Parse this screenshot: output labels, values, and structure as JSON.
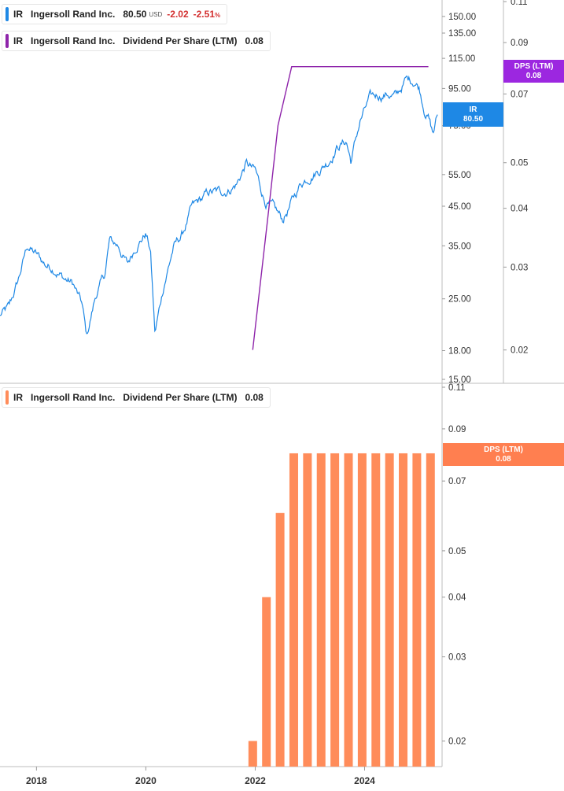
{
  "colors": {
    "price": "#1e88e5",
    "dps_line": "#8e24aa",
    "dps_bar": "#ff8c5a",
    "tag_price": "#1e88e5",
    "tag_dps_top": "#9c27e0",
    "tag_dps_bottom": "#ff7f50"
  },
  "legend_price": {
    "ticker": "IR",
    "name": "Ingersoll Rand Inc.",
    "price": "80.50",
    "unit": "USD",
    "change": "-2.02",
    "pct_value": "-2.51",
    "pct_sign": "%"
  },
  "legend_dps_top": {
    "ticker": "IR",
    "name": "Ingersoll Rand Inc.",
    "metric": "Dividend Per Share (LTM)",
    "value": "0.08"
  },
  "legend_dps_bottom": {
    "ticker": "IR",
    "name": "Ingersoll Rand Inc.",
    "metric": "Dividend Per Share (LTM)",
    "value": "0.08"
  },
  "tags": {
    "price": {
      "label": "IR",
      "value": "80.50"
    },
    "dps_top": {
      "label": "DPS (LTM)",
      "value": "0.08"
    },
    "dps_bottom": {
      "label": "DPS (LTM)",
      "value": "0.08"
    }
  },
  "chart_data": [
    {
      "type": "line",
      "series": [
        {
          "name": "IR",
          "scale": "log",
          "points": [
            [
              "2017-05",
              22.5
            ],
            [
              "2017-07",
              23.5
            ],
            [
              "2017-09",
              28.0
            ],
            [
              "2017-11",
              35.0
            ],
            [
              "2018-01",
              33.0
            ],
            [
              "2018-03",
              31.0
            ],
            [
              "2018-05",
              30.5
            ],
            [
              "2018-07",
              28.5
            ],
            [
              "2018-09",
              27.5
            ],
            [
              "2018-11",
              24.0
            ],
            [
              "2018-12",
              19.5
            ],
            [
              "2019-02",
              25.5
            ],
            [
              "2019-04",
              29.0
            ],
            [
              "2019-05",
              36.0
            ],
            [
              "2019-07",
              35.0
            ],
            [
              "2019-09",
              31.0
            ],
            [
              "2019-11",
              35.5
            ],
            [
              "2020-01",
              38.0
            ],
            [
              "2020-02",
              34.0
            ],
            [
              "2020-03",
              20.0
            ],
            [
              "2020-05",
              27.5
            ],
            [
              "2020-07",
              34.5
            ],
            [
              "2020-09",
              37.5
            ],
            [
              "2020-11",
              44.0
            ],
            [
              "2021-01",
              46.5
            ],
            [
              "2021-03",
              49.0
            ],
            [
              "2021-05",
              49.0
            ],
            [
              "2021-07",
              50.0
            ],
            [
              "2021-09",
              52.0
            ],
            [
              "2021-11",
              59.0
            ],
            [
              "2022-01",
              56.0
            ],
            [
              "2022-03",
              47.0
            ],
            [
              "2022-05",
              44.0
            ],
            [
              "2022-07",
              41.0
            ],
            [
              "2022-09",
              46.0
            ],
            [
              "2022-11",
              52.0
            ],
            [
              "2023-01",
              55.0
            ],
            [
              "2023-03",
              57.0
            ],
            [
              "2023-05",
              60.0
            ],
            [
              "2023-07",
              66.0
            ],
            [
              "2023-09",
              68.0
            ],
            [
              "2023-10",
              60.0
            ],
            [
              "2023-12",
              77.0
            ],
            [
              "2024-02",
              88.0
            ],
            [
              "2024-04",
              91.0
            ],
            [
              "2024-06",
              92.0
            ],
            [
              "2024-08",
              90.0
            ],
            [
              "2024-10",
              100.0
            ],
            [
              "2024-12",
              100.0
            ],
            [
              "2025-01",
              96.0
            ],
            [
              "2025-02",
              85.0
            ],
            [
              "2025-03",
              80.0
            ],
            [
              "2025-04",
              71.0
            ],
            [
              "2025-05",
              80.5
            ]
          ]
        },
        {
          "name": "DPS (LTM)",
          "scale": "log",
          "points": [
            [
              "2021-12-15",
              0.02
            ],
            [
              "2022-04",
              0.04
            ],
            [
              "2022-06",
              0.06
            ],
            [
              "2022-09",
              0.08
            ],
            [
              "2025-03",
              0.08
            ]
          ]
        }
      ],
      "y_left_ticks": [
        150.0,
        135.0,
        115.0,
        95.0,
        75.0,
        55.0,
        45.0,
        35.0,
        25.0,
        18.0,
        15.0
      ],
      "y_left_tick_labels": [
        "150.00",
        "135.00",
        "115.00",
        "95.00",
        "75.00",
        "55.00",
        "45.00",
        "35.00",
        "25.00",
        "18.00",
        "15.00"
      ],
      "y_right_ticks": [
        0.11,
        0.09,
        0.07,
        0.05,
        0.04,
        0.03,
        0.02
      ],
      "y_right_tick_labels": [
        "0.11",
        "0.09",
        "0.07",
        "0.05",
        "0.04",
        "0.03",
        "0.02"
      ],
      "y_left_range": [
        15,
        160
      ],
      "y_right_range": [
        0.018,
        0.11
      ]
    },
    {
      "type": "bar",
      "scale": "log",
      "series": [
        {
          "name": "Dividend Per Share (LTM)",
          "points": [
            [
              "2021-12-15",
              0.02
            ],
            [
              "2022-03-15",
              0.04
            ],
            [
              "2022-06-15",
              0.06
            ],
            [
              "2022-09-15",
              0.08
            ],
            [
              "2022-12-15",
              0.08
            ],
            [
              "2023-03-15",
              0.08
            ],
            [
              "2023-06-15",
              0.08
            ],
            [
              "2023-09-15",
              0.08
            ],
            [
              "2023-12-15",
              0.08
            ],
            [
              "2024-03-15",
              0.08
            ],
            [
              "2024-06-15",
              0.08
            ],
            [
              "2024-09-15",
              0.08
            ],
            [
              "2024-12-15",
              0.08
            ],
            [
              "2025-03-15",
              0.08
            ]
          ]
        }
      ],
      "y_ticks": [
        0.11,
        0.09,
        0.07,
        0.05,
        0.04,
        0.03,
        0.02
      ],
      "y_tick_labels": [
        "0.11",
        "0.09",
        "0.07",
        "0.05",
        "0.04",
        "0.03",
        "0.02"
      ],
      "y_range": [
        0.0185,
        0.11
      ],
      "x_ticks": [
        "2018",
        "2020",
        "2022",
        "2024"
      ],
      "x_range": [
        "2017-05",
        "2025-06"
      ]
    }
  ]
}
